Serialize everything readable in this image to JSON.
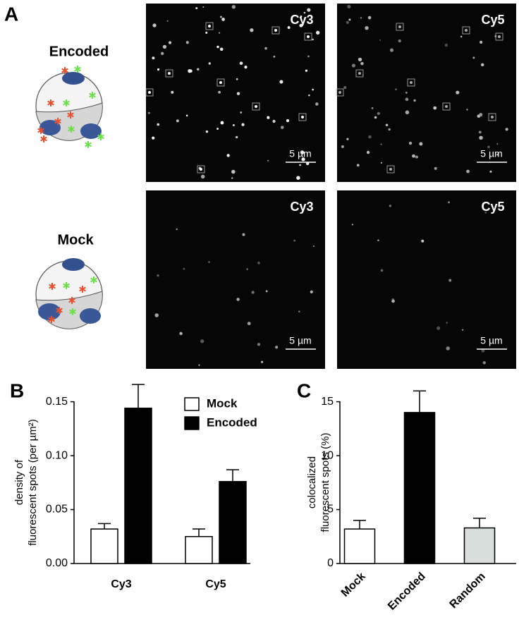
{
  "panel_a": {
    "label": "A",
    "rows": [
      {
        "name": "Encoded",
        "images": [
          "Cy3",
          "Cy5"
        ]
      },
      {
        "name": "Mock",
        "images": [
          "Cy3",
          "Cy5"
        ]
      }
    ],
    "scale_bar": "5 µm"
  },
  "chart_data": [
    {
      "type": "bar",
      "panel_label": "B",
      "ylabel": [
        "density of",
        "fluorescent spots (per µm²)"
      ],
      "categories": [
        "Cy3",
        "Cy5"
      ],
      "series": [
        {
          "name": "Mock",
          "color": "#ffffff",
          "values": [
            0.032,
            0.025
          ],
          "errors": [
            0.005,
            0.007
          ]
        },
        {
          "name": "Encoded",
          "color": "#000000",
          "values": [
            0.144,
            0.076
          ],
          "errors": [
            0.022,
            0.011
          ]
        }
      ],
      "ylim": [
        0,
        0.17
      ],
      "yticks": [
        {
          "value": 0,
          "label": "0.00"
        },
        {
          "value": 0.05,
          "label": "0.05"
        },
        {
          "value": 0.1,
          "label": "0.10"
        },
        {
          "value": 0.15,
          "label": "0.15"
        }
      ],
      "legend": "upper right"
    },
    {
      "type": "bar",
      "panel_label": "C",
      "ylabel": [
        "colocalized",
        "fluorescent spots (%)"
      ],
      "categories": [
        "Mock",
        "Encoded",
        "Random"
      ],
      "values": [
        3.2,
        14.0,
        3.3
      ],
      "errors": [
        0.8,
        2.0,
        0.9
      ],
      "colors": [
        "#ffffff",
        "#000000",
        "#d8dedb"
      ],
      "ylim": [
        0,
        17
      ],
      "yticks": [
        0,
        5,
        10,
        15
      ]
    }
  ]
}
